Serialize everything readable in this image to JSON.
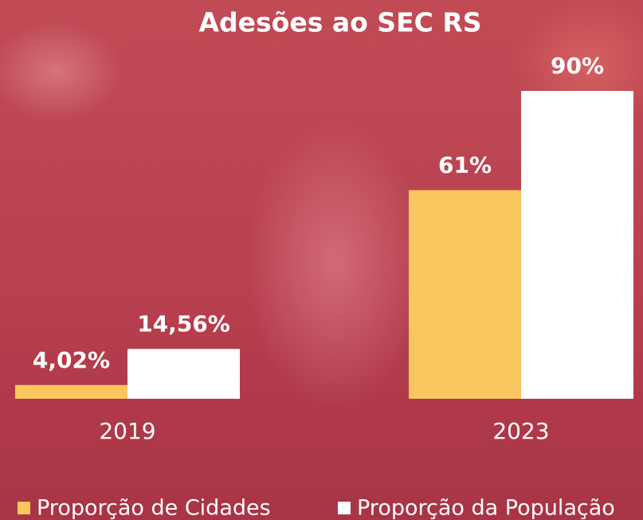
{
  "chart_data": {
    "type": "bar",
    "title": "Adesões ao SEC RS",
    "categories": [
      "2019",
      "2023"
    ],
    "series": [
      {
        "name": "Proporção de Cidades",
        "color": "#f9c660",
        "values": [
          4.02,
          61
        ],
        "value_labels": [
          "4,02%",
          "61%"
        ]
      },
      {
        "name": "Proporção da População",
        "color": "#ffffff",
        "values": [
          14.56,
          90
        ],
        "value_labels": [
          "14,56%",
          "90%"
        ]
      }
    ]
  }
}
